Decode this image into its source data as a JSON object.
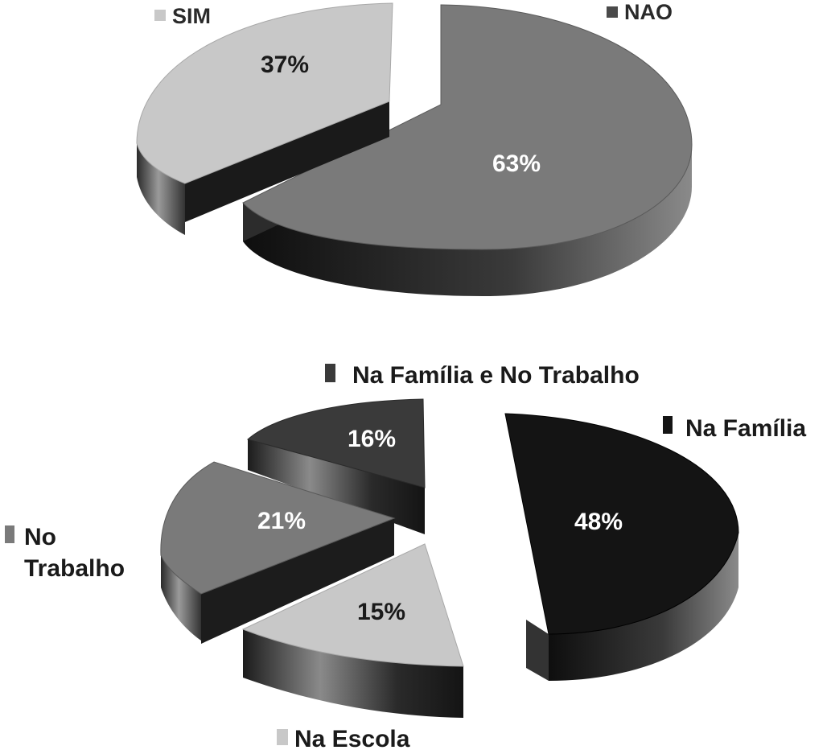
{
  "chart_data": [
    {
      "type": "pie",
      "style": "3d-exploded",
      "legend_placement": "around the pie, next to each slice",
      "slices": [
        {
          "label": "SIM",
          "value": 37,
          "value_label": "37%",
          "color": "#c8c8c8"
        },
        {
          "label": "NAO",
          "value": 63,
          "value_label": "63%",
          "color": "#7a7a7a"
        }
      ]
    },
    {
      "type": "pie",
      "style": "3d-exploded",
      "legend_placement": "around the pie, next to each slice",
      "slices": [
        {
          "label": "Na Família e No Trabalho",
          "value": 16,
          "value_label": "16%",
          "color": "#3a3a3a"
        },
        {
          "label": "Na Família",
          "value": 48,
          "value_label": "48%",
          "color": "#141414"
        },
        {
          "label": "Na Escola",
          "value": 15,
          "value_label": "15%",
          "color": "#c8c8c8"
        },
        {
          "label": "No Trabalho",
          "value": 21,
          "value_label": "21%",
          "label_lines": [
            "No",
            "Trabalho"
          ],
          "color": "#7a7a7a"
        }
      ]
    }
  ]
}
